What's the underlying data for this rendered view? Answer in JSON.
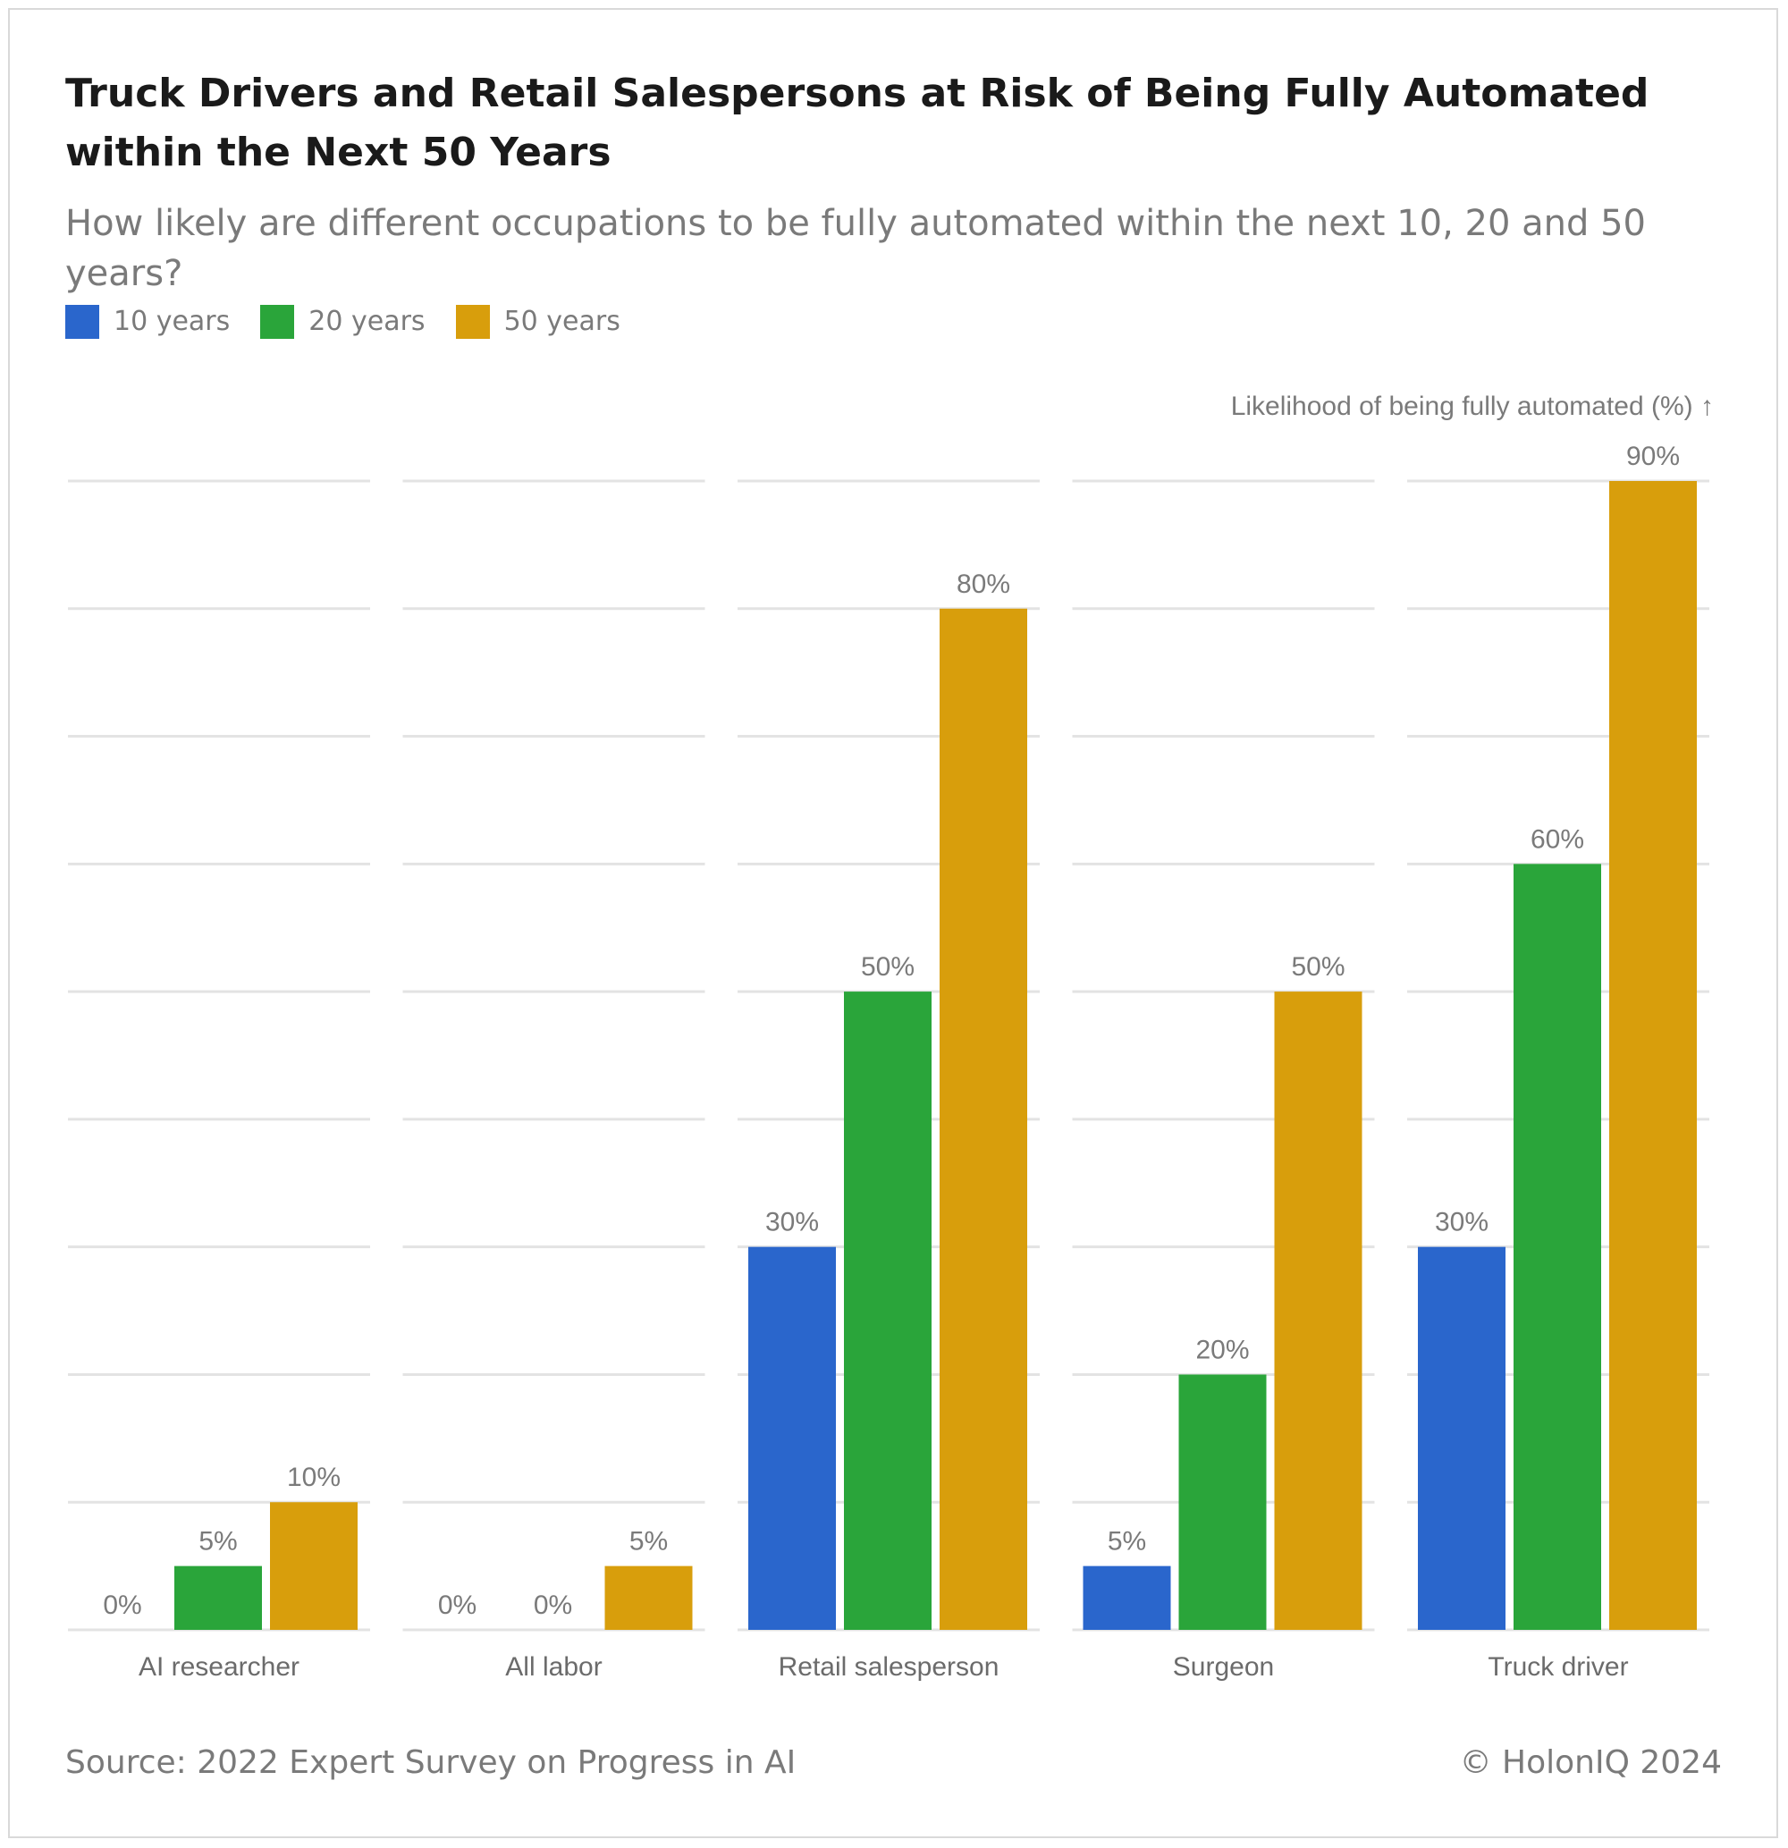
{
  "title": "Truck Drivers and Retail Salespersons at Risk of Being Fully Automated within the Next 50 Years",
  "subtitle": "How likely are different occupations to be fully automated within the next 10, 20 and 50 years?",
  "legend": [
    {
      "label": "10 years",
      "color": "#2a66cc"
    },
    {
      "label": "20 years",
      "color": "#2aa53a"
    },
    {
      "label": "50 years",
      "color": "#d89e0c"
    }
  ],
  "footer": {
    "source": "Source: 2022 Expert Survey on Progress in AI",
    "copyright": "© HolonIQ 2024"
  },
  "chart_data": {
    "type": "bar",
    "ylabel": "Likelihood of being fully automated (%) ↑",
    "ylim": [
      0,
      90
    ],
    "grid": true,
    "value_suffix": "%",
    "categories": [
      "AI researcher",
      "All labor",
      "Retail salesperson",
      "Surgeon",
      "Truck driver"
    ],
    "series": [
      {
        "name": "10 years",
        "color": "#2a66cc",
        "values": [
          0,
          0,
          30,
          5,
          30
        ]
      },
      {
        "name": "20 years",
        "color": "#2aa53a",
        "values": [
          5,
          0,
          50,
          20,
          60
        ]
      },
      {
        "name": "50 years",
        "color": "#d89e0c",
        "values": [
          10,
          5,
          80,
          50,
          90
        ]
      }
    ]
  }
}
